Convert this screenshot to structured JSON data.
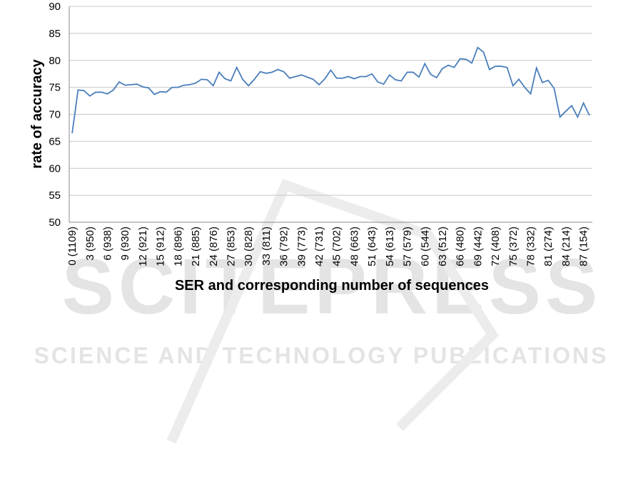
{
  "chart_data": {
    "type": "line",
    "y_label": "rate of accuracy",
    "x_label": "SER and corresponding number of sequences",
    "watermark": "SCITEPRESS",
    "watermark_subtitle": "SCIENCE AND TECHNOLOGY PUBLICATIONS",
    "categories": [
      "0 (1109)",
      null,
      null,
      "3 (950)",
      null,
      null,
      "6 (938)",
      null,
      null,
      "9 (930)",
      null,
      null,
      "12 (921)",
      null,
      null,
      "15 (912)",
      null,
      null,
      "18 (896)",
      null,
      null,
      "21 (885)",
      null,
      null,
      "24 (876)",
      null,
      null,
      "27 (853)",
      null,
      null,
      "30 (828)",
      null,
      null,
      "33 (811)",
      null,
      null,
      "36 (792)",
      null,
      null,
      "39 (773)",
      null,
      null,
      "42 (731)",
      null,
      null,
      "45 (702)",
      null,
      null,
      "48 (663)",
      null,
      null,
      "51 (643)",
      null,
      null,
      "54 (613)",
      null,
      null,
      "57 (579)",
      null,
      null,
      "60 (544)",
      null,
      null,
      "63 (512)",
      null,
      null,
      "66 (480)",
      null,
      null,
      "69 (442)",
      null,
      null,
      "72 (408)",
      null,
      null,
      "75 (372)",
      null,
      null,
      "78 (332)",
      null,
      null,
      "81 (274)",
      null,
      null,
      "84 (214)",
      null,
      null,
      "87 (154)",
      null
    ],
    "values": [
      66.5,
      74.5,
      74.4,
      73.4,
      74.1,
      74.1,
      73.8,
      74.5,
      76.0,
      75.4,
      75.5,
      75.6,
      75.1,
      74.9,
      73.7,
      74.2,
      74.1,
      75.0,
      75.0,
      75.4,
      75.5,
      75.8,
      76.5,
      76.4,
      75.3,
      77.8,
      76.6,
      76.2,
      78.7,
      76.5,
      75.3,
      76.5,
      77.9,
      77.6,
      77.8,
      78.3,
      77.9,
      76.7,
      77.0,
      77.3,
      76.9,
      76.5,
      75.5,
      76.6,
      78.2,
      76.7,
      76.7,
      77.0,
      76.6,
      77.0,
      77.0,
      77.5,
      76.0,
      75.6,
      77.3,
      76.4,
      76.2,
      77.8,
      77.8,
      76.9,
      79.4,
      77.4,
      76.8,
      78.5,
      79.1,
      78.7,
      80.3,
      80.2,
      79.5,
      82.4,
      81.5,
      78.3,
      78.9,
      78.9,
      78.7,
      75.3,
      76.5,
      75.0,
      73.8,
      78.6,
      75.9,
      76.3,
      74.8,
      69.5,
      70.6,
      71.6,
      69.5,
      72.1,
      69.8
    ],
    "color": "#4a7ebb",
    "ylim": [
      50,
      90
    ],
    "yticks": [
      50,
      55,
      60,
      65,
      70,
      75,
      80,
      85,
      90
    ],
    "grid": true
  }
}
